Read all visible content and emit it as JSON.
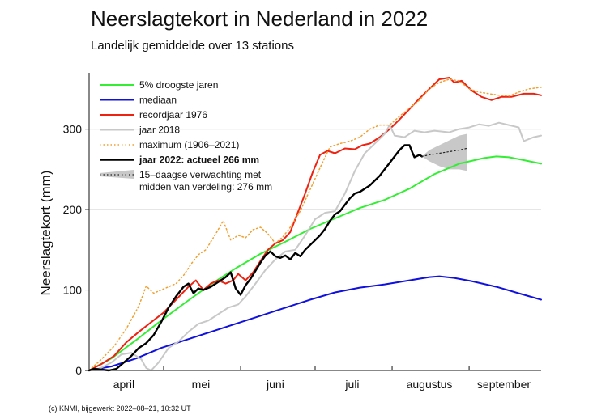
{
  "title": "Neerslagtekort in Nederland in 2022",
  "subtitle": "Landelijk gemiddelde over 13 stations",
  "footer": "(c) KNMI, bijgewerkt 2022–08–21, 10:32 UT",
  "colors": {
    "droogste": "#33ee33",
    "mediaan": "#1111dd",
    "recordjaar": "#ee2211",
    "jaar2018": "#c8c8c8",
    "maximum": "#f0a030",
    "jaar2022": "#000000",
    "forecast_band": "#c8c8c8",
    "grid": "#bdbdbd"
  },
  "chart_data": {
    "type": "line",
    "title": "Neerslagtekort in Nederland in 2022",
    "subtitle": "Landelijk gemiddelde over 13 stations",
    "xlabel": "",
    "ylabel": "Neerslagtekort (mm)",
    "x_unit": "day of year",
    "xlim": [
      91,
      273
    ],
    "ylim": [
      0,
      370
    ],
    "y_ticks": [
      0,
      100,
      200,
      300
    ],
    "month_labels": [
      {
        "label": "april",
        "x": 105
      },
      {
        "label": "mei",
        "x": 136
      },
      {
        "label": "juni",
        "x": 166
      },
      {
        "label": "juli",
        "x": 197
      },
      {
        "label": "augustus",
        "x": 228
      },
      {
        "label": "september",
        "x": 258
      }
    ],
    "month_boundaries": [
      121,
      152,
      182,
      213,
      244
    ],
    "grid": true,
    "legend_position": "top-left",
    "legend": [
      {
        "key": "droogste",
        "label": "5% droogste jaren",
        "style": "line"
      },
      {
        "key": "mediaan",
        "label": "mediaan",
        "style": "line"
      },
      {
        "key": "recordjaar",
        "label": "recordjaar 1976",
        "style": "line"
      },
      {
        "key": "jaar2018",
        "label": "jaar 2018",
        "style": "line"
      },
      {
        "key": "maximum",
        "label": "maximum (1906–2021)",
        "style": "dotted"
      },
      {
        "key": "jaar2022",
        "label": "jaar 2022: actueel 266 mm",
        "style": "bold"
      },
      {
        "key": "forecast",
        "label": "15–daagse verwachting met",
        "label2": "midden van verdeling: 276 mm",
        "style": "band"
      }
    ],
    "series": [
      {
        "key": "droogste",
        "name": "5% droogste jaren",
        "width": 2,
        "points": [
          [
            91,
            0
          ],
          [
            100,
            15
          ],
          [
            110,
            38
          ],
          [
            120,
            62
          ],
          [
            130,
            85
          ],
          [
            140,
            107
          ],
          [
            150,
            127
          ],
          [
            160,
            145
          ],
          [
            170,
            160
          ],
          [
            180,
            176
          ],
          [
            190,
            189
          ],
          [
            200,
            202
          ],
          [
            210,
            212
          ],
          [
            220,
            226
          ],
          [
            230,
            244
          ],
          [
            240,
            257
          ],
          [
            250,
            264
          ],
          [
            255,
            266
          ],
          [
            260,
            265
          ],
          [
            265,
            262
          ],
          [
            273,
            257
          ]
        ]
      },
      {
        "key": "mediaan",
        "name": "mediaan",
        "width": 2,
        "points": [
          [
            91,
            0
          ],
          [
            100,
            5
          ],
          [
            110,
            15
          ],
          [
            120,
            28
          ],
          [
            130,
            38
          ],
          [
            140,
            48
          ],
          [
            150,
            58
          ],
          [
            160,
            68
          ],
          [
            170,
            78
          ],
          [
            180,
            88
          ],
          [
            190,
            97
          ],
          [
            200,
            103
          ],
          [
            210,
            107
          ],
          [
            220,
            112
          ],
          [
            228,
            116
          ],
          [
            232,
            117
          ],
          [
            238,
            115
          ],
          [
            245,
            111
          ],
          [
            255,
            104
          ],
          [
            265,
            95
          ],
          [
            273,
            88
          ]
        ]
      },
      {
        "key": "recordjaar",
        "name": "recordjaar 1976",
        "width": 2,
        "points": [
          [
            91,
            0
          ],
          [
            96,
            8
          ],
          [
            101,
            18
          ],
          [
            106,
            35
          ],
          [
            111,
            48
          ],
          [
            116,
            60
          ],
          [
            121,
            72
          ],
          [
            126,
            88
          ],
          [
            131,
            104
          ],
          [
            134,
            112
          ],
          [
            137,
            100
          ],
          [
            140,
            108
          ],
          [
            143,
            112
          ],
          [
            146,
            108
          ],
          [
            149,
            112
          ],
          [
            151,
            120
          ],
          [
            154,
            112
          ],
          [
            157,
            122
          ],
          [
            160,
            136
          ],
          [
            163,
            150
          ],
          [
            166,
            158
          ],
          [
            169,
            162
          ],
          [
            172,
            172
          ],
          [
            175,
            196
          ],
          [
            178,
            220
          ],
          [
            181,
            246
          ],
          [
            184,
            268
          ],
          [
            187,
            273
          ],
          [
            190,
            270
          ],
          [
            194,
            276
          ],
          [
            198,
            275
          ],
          [
            201,
            280
          ],
          [
            204,
            282
          ],
          [
            208,
            290
          ],
          [
            212,
            300
          ],
          [
            216,
            312
          ],
          [
            220,
            325
          ],
          [
            224,
            338
          ],
          [
            228,
            350
          ],
          [
            232,
            362
          ],
          [
            236,
            364
          ],
          [
            238,
            358
          ],
          [
            241,
            360
          ],
          [
            245,
            348
          ],
          [
            249,
            340
          ],
          [
            253,
            336
          ],
          [
            257,
            340
          ],
          [
            261,
            340
          ],
          [
            266,
            344
          ],
          [
            270,
            344
          ],
          [
            273,
            342
          ]
        ]
      },
      {
        "key": "jaar2018",
        "name": "jaar 2018",
        "width": 2,
        "points": [
          [
            91,
            0
          ],
          [
            95,
            2
          ],
          [
            100,
            10
          ],
          [
            104,
            20
          ],
          [
            108,
            22
          ],
          [
            112,
            14
          ],
          [
            114,
            3
          ],
          [
            116,
            0
          ],
          [
            119,
            10
          ],
          [
            123,
            28
          ],
          [
            127,
            36
          ],
          [
            131,
            48
          ],
          [
            135,
            58
          ],
          [
            139,
            62
          ],
          [
            143,
            70
          ],
          [
            147,
            78
          ],
          [
            151,
            82
          ],
          [
            154,
            92
          ],
          [
            158,
            108
          ],
          [
            162,
            125
          ],
          [
            166,
            138
          ],
          [
            170,
            148
          ],
          [
            174,
            150
          ],
          [
            178,
            168
          ],
          [
            182,
            188
          ],
          [
            186,
            196
          ],
          [
            190,
            198
          ],
          [
            194,
            220
          ],
          [
            198,
            248
          ],
          [
            202,
            270
          ],
          [
            206,
            282
          ],
          [
            210,
            294
          ],
          [
            212,
            305
          ],
          [
            214,
            292
          ],
          [
            218,
            290
          ],
          [
            222,
            298
          ],
          [
            226,
            296
          ],
          [
            230,
            298
          ],
          [
            236,
            296
          ],
          [
            240,
            300
          ],
          [
            244,
            302
          ],
          [
            248,
            306
          ],
          [
            252,
            304
          ],
          [
            256,
            308
          ],
          [
            260,
            305
          ],
          [
            264,
            302
          ],
          [
            266,
            285
          ],
          [
            270,
            290
          ],
          [
            273,
            292
          ]
        ]
      },
      {
        "key": "maximum",
        "name": "maximum (1906–2021)",
        "width": 1.5,
        "dash": "1.5,3",
        "points": [
          [
            91,
            0
          ],
          [
            96,
            14
          ],
          [
            101,
            30
          ],
          [
            106,
            52
          ],
          [
            111,
            80
          ],
          [
            114,
            105
          ],
          [
            117,
            96
          ],
          [
            120,
            100
          ],
          [
            123,
            104
          ],
          [
            126,
            108
          ],
          [
            129,
            118
          ],
          [
            132,
            132
          ],
          [
            135,
            144
          ],
          [
            138,
            150
          ],
          [
            142,
            170
          ],
          [
            145,
            186
          ],
          [
            148,
            162
          ],
          [
            151,
            168
          ],
          [
            154,
            165
          ],
          [
            157,
            175
          ],
          [
            160,
            178
          ],
          [
            163,
            170
          ],
          [
            166,
            158
          ],
          [
            169,
            166
          ],
          [
            172,
            178
          ],
          [
            176,
            198
          ],
          [
            180,
            225
          ],
          [
            184,
            252
          ],
          [
            188,
            278
          ],
          [
            192,
            282
          ],
          [
            196,
            285
          ],
          [
            200,
            290
          ],
          [
            204,
            300
          ],
          [
            208,
            305
          ],
          [
            212,
            305
          ],
          [
            216,
            316
          ],
          [
            220,
            326
          ],
          [
            224,
            336
          ],
          [
            228,
            350
          ],
          [
            232,
            358
          ],
          [
            236,
            362
          ],
          [
            240,
            360
          ],
          [
            244,
            350
          ],
          [
            248,
            346
          ],
          [
            252,
            344
          ],
          [
            256,
            342
          ],
          [
            260,
            341
          ],
          [
            264,
            346
          ],
          [
            268,
            350
          ],
          [
            273,
            352
          ]
        ]
      },
      {
        "key": "jaar2022",
        "name": "jaar 2022: actueel 266 mm",
        "width": 2.4,
        "points": [
          [
            91,
            0
          ],
          [
            93,
            2
          ],
          [
            96,
            1
          ],
          [
            99,
            0
          ],
          [
            102,
            2
          ],
          [
            105,
            10
          ],
          [
            108,
            18
          ],
          [
            111,
            28
          ],
          [
            114,
            34
          ],
          [
            117,
            44
          ],
          [
            120,
            60
          ],
          [
            123,
            78
          ],
          [
            126,
            92
          ],
          [
            129,
            104
          ],
          [
            131,
            108
          ],
          [
            133,
            96
          ],
          [
            135,
            102
          ],
          [
            137,
            100
          ],
          [
            140,
            104
          ],
          [
            143,
            110
          ],
          [
            146,
            116
          ],
          [
            148,
            122
          ],
          [
            150,
            102
          ],
          [
            152,
            94
          ],
          [
            154,
            106
          ],
          [
            156,
            114
          ],
          [
            158,
            124
          ],
          [
            160,
            134
          ],
          [
            162,
            143
          ],
          [
            164,
            148
          ],
          [
            166,
            142
          ],
          [
            168,
            140
          ],
          [
            170,
            143
          ],
          [
            172,
            138
          ],
          [
            174,
            146
          ],
          [
            176,
            142
          ],
          [
            178,
            150
          ],
          [
            180,
            156
          ],
          [
            182,
            162
          ],
          [
            184,
            168
          ],
          [
            186,
            176
          ],
          [
            188,
            186
          ],
          [
            190,
            194
          ],
          [
            192,
            198
          ],
          [
            194,
            206
          ],
          [
            196,
            214
          ],
          [
            198,
            220
          ],
          [
            200,
            222
          ],
          [
            202,
            226
          ],
          [
            204,
            230
          ],
          [
            206,
            236
          ],
          [
            208,
            242
          ],
          [
            210,
            250
          ],
          [
            212,
            258
          ],
          [
            214,
            266
          ],
          [
            216,
            274
          ],
          [
            218,
            280
          ],
          [
            220,
            280
          ],
          [
            221,
            272
          ],
          [
            222,
            265
          ],
          [
            224,
            268
          ],
          [
            225,
            266
          ]
        ]
      },
      {
        "key": "forecast",
        "name": "15–daagse verwachting",
        "width": 1.2,
        "dash": "1.5,3",
        "points": [
          [
            225,
            266
          ],
          [
            228,
            268
          ],
          [
            232,
            270
          ],
          [
            236,
            272
          ],
          [
            240,
            274
          ],
          [
            243,
            276
          ]
        ]
      }
    ],
    "forecast_band": {
      "upper": [
        [
          225,
          266
        ],
        [
          228,
          274
        ],
        [
          232,
          280
        ],
        [
          236,
          286
        ],
        [
          240,
          292
        ],
        [
          243,
          294
        ]
      ],
      "lower": [
        [
          225,
          266
        ],
        [
          228,
          260
        ],
        [
          232,
          254
        ],
        [
          236,
          250
        ],
        [
          240,
          250
        ],
        [
          243,
          248
        ]
      ]
    }
  }
}
